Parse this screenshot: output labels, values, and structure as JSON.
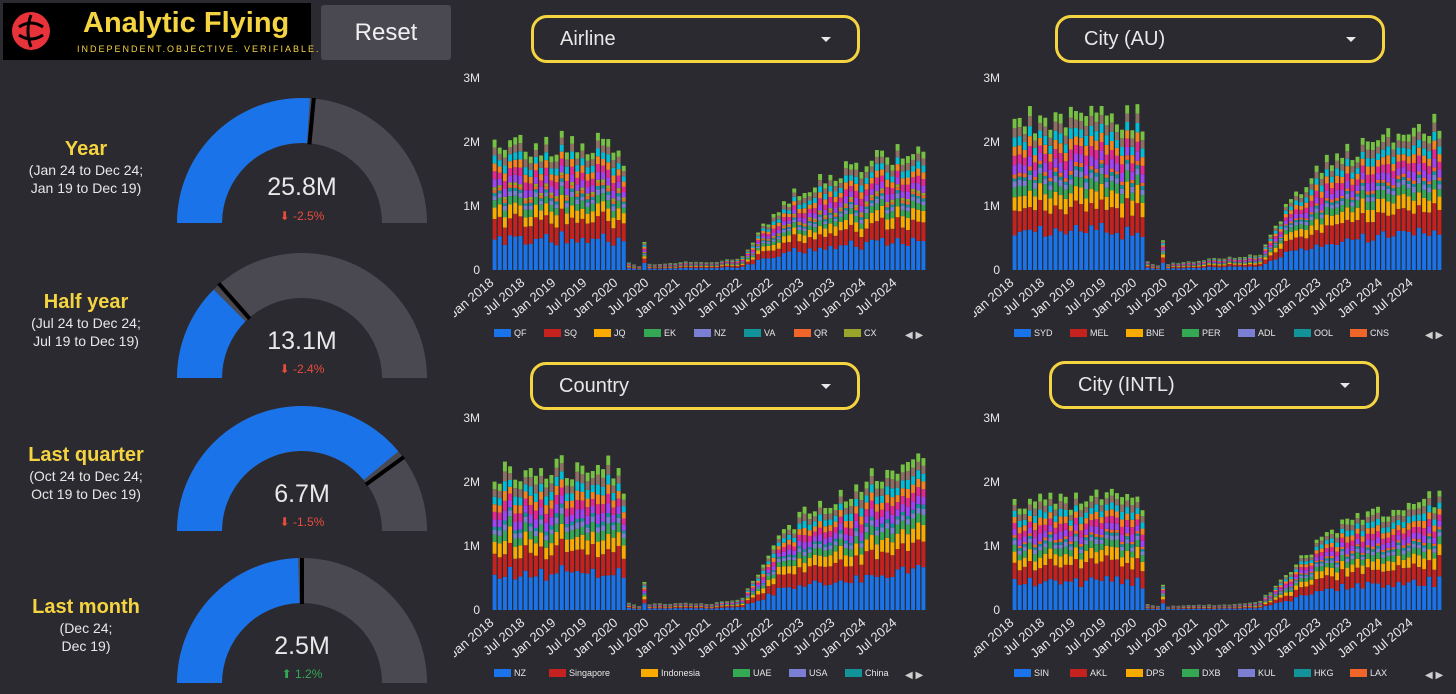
{
  "header": {
    "logo_title": "Analytic Flying",
    "logo_tagline": "INDEPENDENT.OBJECTIVE. VERIFIABLE.",
    "reset_label": "Reset"
  },
  "kpis": [
    {
      "title": "Year",
      "sub1": "(Jan 24 to Dec 24;",
      "sub2": "Jan 19 to Dec 19)",
      "value": "25.8M",
      "delta": "-2.5%",
      "direction": "down",
      "fill": 0.52,
      "target": 0.53
    },
    {
      "title": "Half year",
      "sub1": "(Jul 24 to Dec 24;",
      "sub2": "Jul 19 to Dec 19)",
      "value": "13.1M",
      "delta": "-2.4%",
      "direction": "down",
      "fill": 0.25,
      "target": 0.27
    },
    {
      "title": "Last quarter",
      "sub1": "(Oct 24 to Dec 24;",
      "sub2": "Oct 19 to Dec 19)",
      "value": "6.7M",
      "delta": "-1.5%",
      "direction": "down",
      "fill": 0.78,
      "target": 0.8
    },
    {
      "title": "Last month",
      "sub1": "(Dec 24;",
      "sub2": "Dec 19)",
      "value": "2.5M",
      "delta": "1.2%",
      "direction": "up",
      "fill": 0.49,
      "target": 0.5
    }
  ],
  "dropdowns": {
    "airline": "Airline",
    "city_au": "City (AU)",
    "country": "Country",
    "city_intl": "City (INTL)"
  },
  "pager": "◀ ▶",
  "colors": {
    "background": "#2b2a30",
    "accent": "#f5d442",
    "gauge_fill": "#1a73e8",
    "gauge_track": "#4a4951",
    "down": "#e84c3d",
    "up": "#34a853"
  },
  "chart_data": [
    {
      "type": "bar",
      "stacked": true,
      "selector": "Airline",
      "y_ticks": [
        "0",
        "1M",
        "2M",
        "3M"
      ],
      "ylim": [
        0,
        3000000
      ],
      "x_ticks": [
        "Jan 2018",
        "Jul 2018",
        "Jan 2019",
        "Jul 2019",
        "Jan 2020",
        "Jul 2020",
        "Jan 2021",
        "Jul 2021",
        "Jan 2022",
        "Jul 2022",
        "Jan 2023",
        "Jul 2023",
        "Jan 2024",
        "Jul 2024"
      ],
      "x_range": [
        "Jan 2018",
        "Dec 2024"
      ],
      "series": [
        {
          "name": "QF",
          "color": "#1a73e8"
        },
        {
          "name": "SQ",
          "color": "#c5221f"
        },
        {
          "name": "JQ",
          "color": "#f9ab00"
        },
        {
          "name": "EK",
          "color": "#34a853"
        },
        {
          "name": "NZ",
          "color": "#7b7fd4"
        },
        {
          "name": "VA",
          "color": "#12939a"
        },
        {
          "name": "QR",
          "color": "#f06529"
        },
        {
          "name": "CX",
          "color": "#9aa32a"
        }
      ],
      "monthly_total_approx": {
        "2018": 1950000,
        "2019": 2000000,
        "Jan 2020": 1950000,
        "Jul 2020": 90000,
        "Jan 2021": 120000,
        "Jul 2021": 120000,
        "Jan 2022": 200000,
        "Jul 2022": 900000,
        "Jan 2023": 1300000,
        "Jul 2023": 1500000,
        "Jan 2024": 1650000,
        "Dec 2024": 1950000
      }
    },
    {
      "type": "bar",
      "stacked": true,
      "selector": "City (AU)",
      "y_ticks": [
        "0",
        "1M",
        "2M",
        "3M"
      ],
      "ylim": [
        0,
        3000000
      ],
      "x_ticks": [
        "Jan 2018",
        "Jul 2018",
        "Jan 2019",
        "Jul 2019",
        "Jan 2020",
        "Jul 2020",
        "Jan 2021",
        "Jul 2021",
        "Jan 2022",
        "Jul 2022",
        "Jan 2023",
        "Jul 2023",
        "Jan 2024",
        "Jul 2024"
      ],
      "x_range": [
        "Jan 2018",
        "Dec 2024"
      ],
      "series": [
        {
          "name": "SYD",
          "color": "#1a73e8"
        },
        {
          "name": "MEL",
          "color": "#c5221f"
        },
        {
          "name": "BNE",
          "color": "#f9ab00"
        },
        {
          "name": "PER",
          "color": "#34a853"
        },
        {
          "name": "ADL",
          "color": "#7b7fd4"
        },
        {
          "name": "OOL",
          "color": "#12939a"
        },
        {
          "name": "CNS",
          "color": "#f06529"
        }
      ],
      "monthly_total_approx": {
        "2018": 2350000,
        "2019": 2400000,
        "Jan 2020": 2450000,
        "Jul 2020": 100000,
        "Jan 2021": 150000,
        "Jul 2021": 200000,
        "Jan 2022": 250000,
        "Jul 2022": 1100000,
        "Jan 2023": 1600000,
        "Jul 2023": 1900000,
        "Jan 2024": 2100000,
        "Dec 2024": 2350000
      }
    },
    {
      "type": "bar",
      "stacked": true,
      "selector": "Country",
      "y_ticks": [
        "0",
        "1M",
        "2M",
        "3M"
      ],
      "ylim": [
        0,
        3000000
      ],
      "x_ticks": [
        "Jan 2018",
        "Jul 2018",
        "Jan 2019",
        "Jul 2019",
        "Jan 2020",
        "Jul 2020",
        "Jan 2021",
        "Jul 2021",
        "Jan 2022",
        "Jul 2022",
        "Jan 2023",
        "Jul 2023",
        "Jan 2024",
        "Jul 2024"
      ],
      "x_range": [
        "Jan 2018",
        "Dec 2024"
      ],
      "series": [
        {
          "name": "NZ",
          "color": "#1a73e8"
        },
        {
          "name": "Singapore",
          "color": "#c5221f"
        },
        {
          "name": "Indonesia",
          "color": "#f9ab00"
        },
        {
          "name": "UAE",
          "color": "#34a853"
        },
        {
          "name": "USA",
          "color": "#7b7fd4"
        },
        {
          "name": "China",
          "color": "#12939a"
        }
      ],
      "monthly_total_approx": {
        "2018": 2150000,
        "2019": 2200000,
        "Jan 2020": 2250000,
        "Jul 2020": 90000,
        "Jan 2021": 110000,
        "Jul 2021": 100000,
        "Jan 2022": 180000,
        "Jul 2022": 1000000,
        "Jan 2023": 1500000,
        "Jul 2023": 1800000,
        "Jan 2024": 2000000,
        "Dec 2024": 2250000
      }
    },
    {
      "type": "bar",
      "stacked": true,
      "selector": "City (INTL)",
      "y_ticks": [
        "0",
        "1M",
        "2M",
        "3M"
      ],
      "ylim": [
        0,
        3000000
      ],
      "x_ticks": [
        "Jan 2018",
        "Jul 2018",
        "Jan 2019",
        "Jul 2019",
        "Jan 2020",
        "Jul 2020",
        "Jan 2021",
        "Jul 2021",
        "Jan 2022",
        "Jul 2022",
        "Jan 2023",
        "Jul 2023",
        "Jan 2024",
        "Jul 2024"
      ],
      "x_range": [
        "Jan 2018",
        "Dec 2024"
      ],
      "series": [
        {
          "name": "SIN",
          "color": "#1a73e8"
        },
        {
          "name": "AKL",
          "color": "#c5221f"
        },
        {
          "name": "DPS",
          "color": "#f9ab00"
        },
        {
          "name": "DXB",
          "color": "#34a853"
        },
        {
          "name": "KUL",
          "color": "#7b7fd4"
        },
        {
          "name": "HKG",
          "color": "#12939a"
        },
        {
          "name": "LAX",
          "color": "#f06529"
        }
      ],
      "monthly_total_approx": {
        "2018": 1700000,
        "2019": 1750000,
        "Jan 2020": 1850000,
        "Jul 2020": 60000,
        "Jan 2021": 80000,
        "Jul 2021": 80000,
        "Jan 2022": 130000,
        "Jul 2022": 650000,
        "Jan 2023": 1100000,
        "Jul 2023": 1400000,
        "Jan 2024": 1550000,
        "Dec 2024": 1800000
      }
    }
  ]
}
